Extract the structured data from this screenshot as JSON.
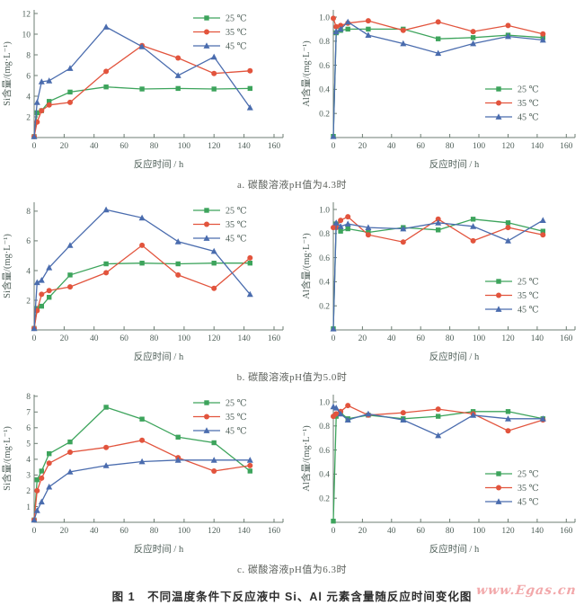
{
  "figure": {
    "caption": "图 1　不同温度条件下反应液中 Si、Al 元素含量随反应时间变化图",
    "watermark": "www.Egas.cn",
    "watermark_color": "#f2a8aa"
  },
  "subcaptions": {
    "a": "a. 碳酸溶液pH值为4.3时",
    "b": "b. 碳酸溶液pH值为5.0时",
    "c": "c. 碳酸溶液pH值为6.3时"
  },
  "legend_labels": [
    "25 ℃",
    "35 ℃",
    "45 ℃"
  ],
  "marker_shapes": [
    "square",
    "circle",
    "triangle"
  ],
  "series_colors": {
    "t25": "#3da45c",
    "t35": "#e2543d",
    "t45": "#4a6cae"
  },
  "chart_data": [
    {
      "id": "si-ph4-3",
      "type": "line",
      "title": "",
      "xlabel": "反应时间 / h",
      "ylabel": "Si含量/(mg·L⁻¹)",
      "xlim": [
        0,
        160
      ],
      "ylim": [
        0,
        12.35
      ],
      "grid": false,
      "xticks": [
        0,
        20,
        40,
        60,
        80,
        100,
        120,
        140,
        160
      ],
      "yticks": [
        2,
        4,
        6,
        8,
        10,
        12
      ],
      "legend_pos": "top-right",
      "x": [
        0,
        2,
        5,
        10,
        24,
        48,
        72,
        96,
        120,
        144
      ],
      "series": [
        {
          "name": "25 ℃",
          "color": "#3da45c",
          "marker": "square",
          "values": [
            0.1,
            2.4,
            2.6,
            3.5,
            4.4,
            4.9,
            4.7,
            4.75,
            4.7,
            4.75
          ]
        },
        {
          "name": "35 ℃",
          "color": "#e2543d",
          "marker": "circle",
          "values": [
            0.1,
            1.5,
            2.6,
            3.15,
            3.4,
            6.4,
            8.9,
            7.7,
            6.2,
            6.45
          ]
        },
        {
          "name": "45 ℃",
          "color": "#4a6cae",
          "marker": "triangle",
          "values": [
            0.1,
            3.4,
            5.4,
            5.5,
            6.7,
            10.7,
            8.8,
            6.0,
            7.8,
            2.9
          ]
        }
      ]
    },
    {
      "id": "al-ph4-3",
      "type": "line",
      "title": "",
      "xlabel": "反应时间 / h",
      "ylabel": "Al含量/(mg·L⁻¹)",
      "xlim": [
        0,
        160
      ],
      "ylim": [
        0,
        1.06
      ],
      "grid": false,
      "xticks": [
        0,
        20,
        40,
        60,
        80,
        100,
        120,
        140,
        160
      ],
      "yticks": [
        "0.2",
        "0.4",
        "0.6",
        "0.8",
        "1.0"
      ],
      "legend_pos": "mid-right",
      "x": [
        0,
        2,
        5,
        10,
        24,
        48,
        72,
        96,
        120,
        144
      ],
      "series": [
        {
          "name": "25 ℃",
          "color": "#3da45c",
          "marker": "square",
          "values": [
            0.01,
            0.87,
            0.89,
            0.9,
            0.9,
            0.9,
            0.82,
            0.83,
            0.85,
            0.83
          ]
        },
        {
          "name": "35 ℃",
          "color": "#e2543d",
          "marker": "circle",
          "values": [
            0.99,
            0.92,
            0.93,
            0.95,
            0.97,
            0.89,
            0.96,
            0.88,
            0.93,
            0.86
          ]
        },
        {
          "name": "45 ℃",
          "color": "#4a6cae",
          "marker": "triangle",
          "values": [
            0.01,
            0.88,
            0.9,
            0.96,
            0.85,
            0.78,
            0.7,
            0.78,
            0.84,
            0.81
          ]
        }
      ]
    },
    {
      "id": "si-ph5-0",
      "type": "line",
      "title": "",
      "xlabel": "反应时间 / h",
      "ylabel": "Si含量/(mg·L⁻¹)",
      "xlim": [
        0,
        160
      ],
      "ylim": [
        0,
        8.6
      ],
      "grid": false,
      "xticks": [
        0,
        20,
        40,
        60,
        80,
        100,
        120,
        140,
        160
      ],
      "yticks": [
        2,
        4,
        6,
        8
      ],
      "legend_pos": "top-right",
      "x": [
        0,
        2,
        5,
        10,
        24,
        48,
        72,
        96,
        120,
        144
      ],
      "series": [
        {
          "name": "25 ℃",
          "color": "#3da45c",
          "marker": "square",
          "values": [
            0.1,
            1.45,
            1.6,
            2.2,
            3.7,
            4.45,
            4.5,
            4.45,
            4.5,
            4.5
          ]
        },
        {
          "name": "35 ℃",
          "color": "#e2543d",
          "marker": "circle",
          "values": [
            0.1,
            1.3,
            2.4,
            2.65,
            2.9,
            3.85,
            5.7,
            3.7,
            2.8,
            4.85
          ]
        },
        {
          "name": "45 ℃",
          "color": "#4a6cae",
          "marker": "triangle",
          "values": [
            0.1,
            3.2,
            3.35,
            4.2,
            5.7,
            8.1,
            7.55,
            5.95,
            5.3,
            2.4
          ]
        }
      ]
    },
    {
      "id": "al-ph5-0",
      "type": "line",
      "title": "",
      "xlabel": "反应时间 / h",
      "ylabel": "Al含量/(mg·L⁻¹)",
      "xlim": [
        0,
        160
      ],
      "ylim": [
        0,
        1.06
      ],
      "grid": false,
      "xticks": [
        0,
        20,
        40,
        60,
        80,
        100,
        120,
        140,
        160
      ],
      "yticks": [
        "0.2",
        "0.4",
        "0.6",
        "0.8",
        "1.0"
      ],
      "legend_pos": "mid-right",
      "x": [
        0,
        2,
        5,
        10,
        24,
        48,
        72,
        96,
        120,
        144
      ],
      "series": [
        {
          "name": "25 ℃",
          "color": "#3da45c",
          "marker": "square",
          "values": [
            0.01,
            0.88,
            0.82,
            0.84,
            0.81,
            0.85,
            0.83,
            0.92,
            0.89,
            0.82
          ]
        },
        {
          "name": "35 ℃",
          "color": "#e2543d",
          "marker": "circle",
          "values": [
            0.85,
            0.85,
            0.91,
            0.94,
            0.79,
            0.73,
            0.92,
            0.74,
            0.85,
            0.79
          ]
        },
        {
          "name": "45 ℃",
          "color": "#4a6cae",
          "marker": "triangle",
          "values": [
            0.01,
            0.89,
            0.86,
            0.88,
            0.85,
            0.84,
            0.89,
            0.86,
            0.74,
            0.91
          ]
        }
      ]
    },
    {
      "id": "si-ph6-3",
      "type": "line",
      "title": "",
      "xlabel": "反应时间 / h",
      "ylabel": "Si含量/(mg·L⁻¹)",
      "xlim": [
        0,
        160
      ],
      "ylim": [
        0,
        8.1
      ],
      "grid": false,
      "xticks": [
        0,
        20,
        40,
        60,
        80,
        100,
        120,
        140,
        160
      ],
      "yticks": [
        1,
        2,
        3,
        4,
        5,
        6,
        7,
        8
      ],
      "legend_pos": "top-right",
      "x": [
        0,
        2,
        5,
        10,
        24,
        48,
        72,
        96,
        120,
        144
      ],
      "series": [
        {
          "name": "25 ℃",
          "color": "#3da45c",
          "marker": "square",
          "values": [
            0.15,
            2.7,
            3.25,
            4.35,
            5.1,
            7.3,
            6.55,
            5.4,
            5.05,
            3.25
          ]
        },
        {
          "name": "35 ℃",
          "color": "#e2543d",
          "marker": "circle",
          "values": [
            0.15,
            2.0,
            2.8,
            3.75,
            4.45,
            4.75,
            5.2,
            4.1,
            3.25,
            3.6
          ]
        },
        {
          "name": "45 ℃",
          "color": "#4a6cae",
          "marker": "triangle",
          "values": [
            0.15,
            0.75,
            1.3,
            2.25,
            3.2,
            3.6,
            3.85,
            3.95,
            3.95,
            3.95
          ]
        }
      ]
    },
    {
      "id": "al-ph6-3",
      "type": "line",
      "title": "",
      "xlabel": "反应时间 / h",
      "ylabel": "Al含量/(mg·L⁻¹)",
      "xlim": [
        0,
        160
      ],
      "ylim": [
        0,
        1.06
      ],
      "grid": false,
      "xticks": [
        0,
        20,
        40,
        60,
        80,
        100,
        120,
        140,
        160
      ],
      "yticks": [
        "0.2",
        "0.4",
        "0.6",
        "0.8",
        "1.0"
      ],
      "legend_pos": "mid-right",
      "x": [
        0,
        2,
        5,
        10,
        24,
        48,
        72,
        96,
        120,
        144
      ],
      "series": [
        {
          "name": "25 ℃",
          "color": "#3da45c",
          "marker": "square",
          "values": [
            0.01,
            0.88,
            0.91,
            0.86,
            0.89,
            0.86,
            0.88,
            0.92,
            0.92,
            0.86
          ]
        },
        {
          "name": "35 ℃",
          "color": "#e2543d",
          "marker": "circle",
          "values": [
            0.88,
            0.9,
            0.92,
            0.97,
            0.89,
            0.91,
            0.94,
            0.9,
            0.76,
            0.85
          ]
        },
        {
          "name": "45 ℃",
          "color": "#4a6cae",
          "marker": "triangle",
          "values": [
            0.96,
            0.95,
            0.9,
            0.85,
            0.9,
            0.85,
            0.72,
            0.89,
            0.86,
            0.86
          ]
        }
      ]
    }
  ]
}
